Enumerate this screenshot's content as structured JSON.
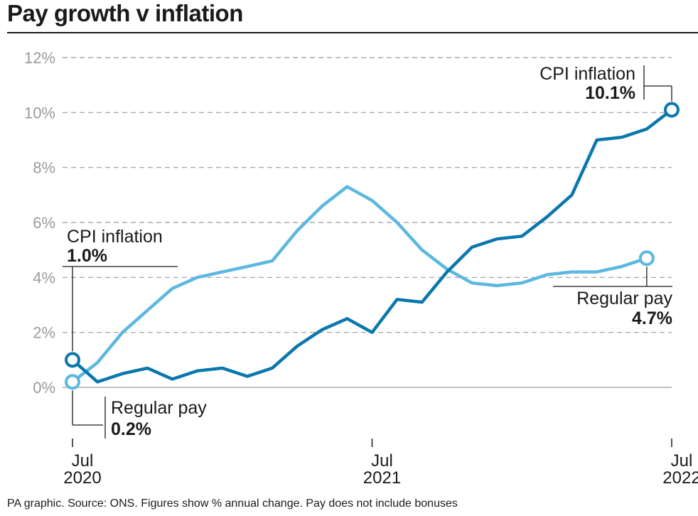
{
  "title": "Pay growth v inflation",
  "source": "PA graphic. Source: ONS. Figures show % annual change. Pay does not include bonuses",
  "colors": {
    "cpi": "#0a77ad",
    "pay": "#5cb8e0",
    "grid": "#9a9a9a",
    "text": "#1a1a1a"
  },
  "annotations": {
    "cpi_start": {
      "label": "CPI inflation",
      "value": "1.0%"
    },
    "pay_start": {
      "label": "Regular pay",
      "value": "0.2%"
    },
    "cpi_end": {
      "label": "CPI inflation",
      "value": "10.1%"
    },
    "pay_end": {
      "label": "Regular pay",
      "value": "4.7%"
    }
  },
  "chart_data": {
    "type": "line",
    "title": "Pay growth v inflation",
    "x": [
      "2020-07",
      "2020-08",
      "2020-09",
      "2020-10",
      "2020-11",
      "2020-12",
      "2021-01",
      "2021-02",
      "2021-03",
      "2021-04",
      "2021-05",
      "2021-06",
      "2021-07",
      "2021-08",
      "2021-09",
      "2021-10",
      "2021-11",
      "2021-12",
      "2022-01",
      "2022-02",
      "2022-03",
      "2022-04",
      "2022-05",
      "2022-06",
      "2022-07"
    ],
    "x_tick_labels": [
      {
        "month": "Jul",
        "year": "2020"
      },
      {
        "month": "Jul",
        "year": "2021"
      },
      {
        "month": "Jul",
        "year": "2022"
      }
    ],
    "y_ticks": [
      "0%",
      "2%",
      "4%",
      "6%",
      "8%",
      "10%",
      "12%"
    ],
    "ylim": [
      0,
      12
    ],
    "grid": true,
    "series": [
      {
        "name": "CPI inflation",
        "values": [
          1.0,
          0.2,
          0.5,
          0.7,
          0.3,
          0.6,
          0.7,
          0.4,
          0.7,
          1.5,
          2.1,
          2.5,
          2.0,
          3.2,
          3.1,
          4.2,
          5.1,
          5.4,
          5.5,
          6.2,
          7.0,
          9.0,
          9.1,
          9.4,
          10.1
        ]
      },
      {
        "name": "Regular pay",
        "values": [
          0.2,
          0.9,
          2.0,
          2.8,
          3.6,
          4.0,
          4.2,
          4.4,
          4.6,
          5.7,
          6.6,
          7.3,
          6.8,
          6.0,
          5.0,
          4.3,
          3.8,
          3.7,
          3.8,
          4.1,
          4.2,
          4.2,
          4.4,
          4.7,
          null
        ]
      }
    ]
  }
}
